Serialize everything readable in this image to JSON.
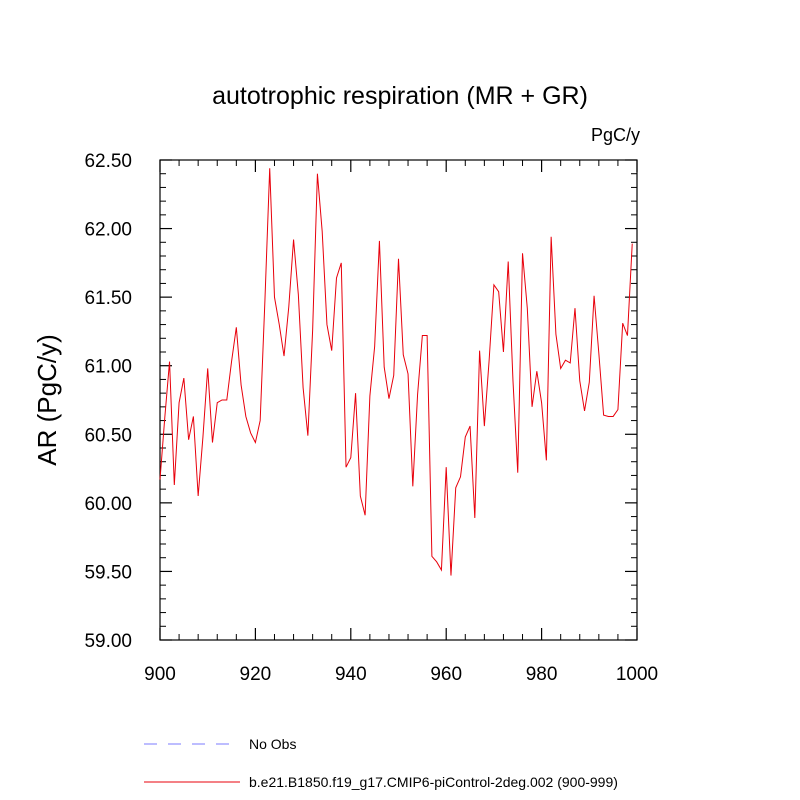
{
  "chart_data": {
    "type": "line",
    "title": "autotrophic respiration (MR + GR)",
    "units_label": "PgC/y",
    "ylabel": "AR  (PgC/y)",
    "xlabel": "",
    "xlim": [
      900,
      1000
    ],
    "ylim": [
      59.0,
      62.5
    ],
    "x_ticks": [
      900,
      920,
      940,
      960,
      980,
      1000
    ],
    "x_tick_labels": [
      "900",
      "920",
      "940",
      "960",
      "980",
      "1000"
    ],
    "y_ticks": [
      59.0,
      59.5,
      60.0,
      60.5,
      61.0,
      61.5,
      62.0,
      62.5
    ],
    "y_tick_labels": [
      "59.00",
      "59.50",
      "60.00",
      "60.50",
      "61.00",
      "61.50",
      "62.00",
      "62.50"
    ],
    "grid": false,
    "legend_position": "bottom-left",
    "series": [
      {
        "name": "b.e21.B1850.f19_g17.CMIP6-piControl-2deg.002 (900-999)",
        "color": "#e8000b",
        "dash": "solid",
        "x_start": 900,
        "x_step": 1,
        "values": [
          60.17,
          60.62,
          61.03,
          60.13,
          60.73,
          60.91,
          60.46,
          60.63,
          60.05,
          60.48,
          60.98,
          60.44,
          60.73,
          60.75,
          60.75,
          61.03,
          61.28,
          60.86,
          60.63,
          60.51,
          60.44,
          60.6,
          61.48,
          62.44,
          61.5,
          61.3,
          61.07,
          61.43,
          61.92,
          61.52,
          60.84,
          60.49,
          61.26,
          62.4,
          61.98,
          61.3,
          61.11,
          61.64,
          61.75,
          60.26,
          60.33,
          60.8,
          60.05,
          59.91,
          60.78,
          61.14,
          61.91,
          60.99,
          60.76,
          60.93,
          61.78,
          61.08,
          60.94,
          60.12,
          60.79,
          61.22,
          61.22,
          59.61,
          59.57,
          59.51,
          60.26,
          59.47,
          60.11,
          60.19,
          60.48,
          60.56,
          59.89,
          61.11,
          60.56,
          61.04,
          61.59,
          61.54,
          61.1,
          61.76,
          60.89,
          60.22,
          61.82,
          61.42,
          60.7,
          60.96,
          60.73,
          60.31,
          61.94,
          61.23,
          60.98,
          61.04,
          61.02,
          61.42,
          60.89,
          60.67,
          60.88,
          61.51,
          61.09,
          60.64,
          60.63,
          60.63,
          60.68,
          61.31,
          61.22,
          61.89
        ]
      },
      {
        "name": "No Obs",
        "color": "#7b7bff",
        "dash": "dashed",
        "values": []
      }
    ]
  }
}
